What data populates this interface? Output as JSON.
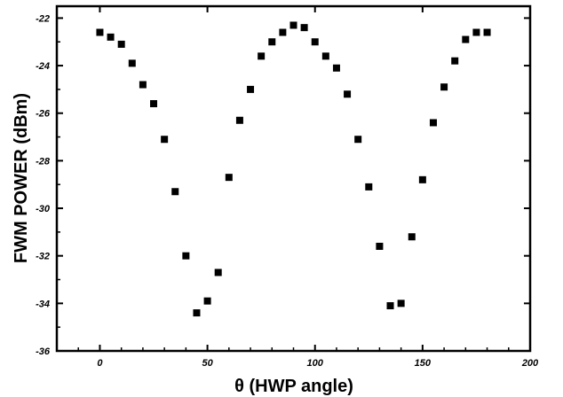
{
  "chart_data": {
    "type": "scatter",
    "title": "",
    "xlabel": "θ (HWP angle)",
    "ylabel": "FWM POWER (dBm)",
    "xlim": [
      -20,
      200
    ],
    "ylim": [
      -36,
      -21.5
    ],
    "xticks": [
      0,
      50,
      100,
      150,
      200
    ],
    "xtick_labels": [
      "0",
      "50",
      "100",
      "150",
      "200"
    ],
    "yticks": [
      -22,
      -24,
      -26,
      -28,
      -30,
      -32,
      -34,
      -36
    ],
    "ytick_labels": [
      "-22",
      "-24",
      "-26",
      "-28",
      "-30",
      "-32",
      "-34",
      "-36"
    ],
    "grid": false,
    "marker": "square",
    "marker_color": "#000000",
    "series": [
      {
        "x": [
          0,
          5,
          10,
          15,
          20,
          25,
          30,
          35,
          40,
          45,
          50,
          55,
          60,
          65,
          70,
          75,
          80,
          85,
          90,
          95,
          100,
          105,
          110,
          115,
          120,
          125,
          130,
          135,
          140,
          145,
          150,
          155,
          160,
          165,
          170,
          175,
          180
        ],
        "y": [
          -22.6,
          -22.8,
          -23.1,
          -23.9,
          -24.8,
          -25.6,
          -27.1,
          -29.3,
          -32.0,
          -34.4,
          -33.9,
          -32.7,
          -28.7,
          -26.3,
          -25.0,
          -23.6,
          -23.0,
          -22.6,
          -22.3,
          -22.4,
          -23.0,
          -23.6,
          -24.1,
          -25.2,
          -27.1,
          -29.1,
          -31.6,
          -34.1,
          -34.0,
          -31.2,
          -28.8,
          -26.4,
          -24.9,
          -23.8,
          -22.9,
          -22.6,
          -22.6
        ]
      }
    ]
  }
}
